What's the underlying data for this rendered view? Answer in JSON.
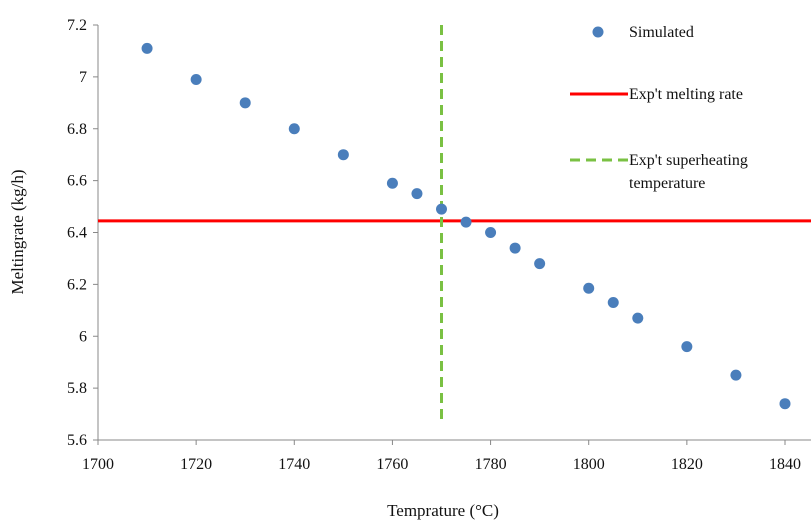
{
  "chart_data": {
    "type": "scatter",
    "title": "",
    "xlabel": "Temprature (°C)",
    "ylabel": "Meltingrate (kg/h)",
    "xlim": [
      1700,
      1840
    ],
    "ylim": [
      5.6,
      7.2
    ],
    "x_ticks": [
      "1700",
      "1720",
      "1740",
      "1760",
      "1780",
      "1800",
      "1820",
      "1840"
    ],
    "y_ticks": [
      "5.6",
      "5.8",
      "6",
      "6.2",
      "6.4",
      "6.6",
      "6.8",
      "7",
      "7.2"
    ],
    "grid": false,
    "legend_position": "top-right",
    "series": [
      {
        "name": "Simulated",
        "kind": "points",
        "color": "#4a7ebb",
        "x": [
          1710,
          1720,
          1730,
          1740,
          1750,
          1760,
          1765,
          1770,
          1775,
          1780,
          1785,
          1790,
          1800,
          1805,
          1810,
          1820,
          1830,
          1840
        ],
        "y": [
          7.11,
          6.99,
          6.9,
          6.8,
          6.7,
          6.59,
          6.55,
          6.49,
          6.44,
          6.4,
          6.34,
          6.28,
          6.185,
          6.13,
          6.07,
          5.96,
          5.85,
          5.74
        ]
      },
      {
        "name": "Exp't melting rate",
        "kind": "hline",
        "color": "#ff0000",
        "y": 6.445
      },
      {
        "name": "Exp't superheating temperature",
        "legend_lines": [
          "Exp't superheating",
          "temperature"
        ],
        "kind": "vline",
        "color": "#7ac143",
        "x": 1770,
        "y_range": [
          5.68,
          7.2
        ]
      }
    ]
  }
}
